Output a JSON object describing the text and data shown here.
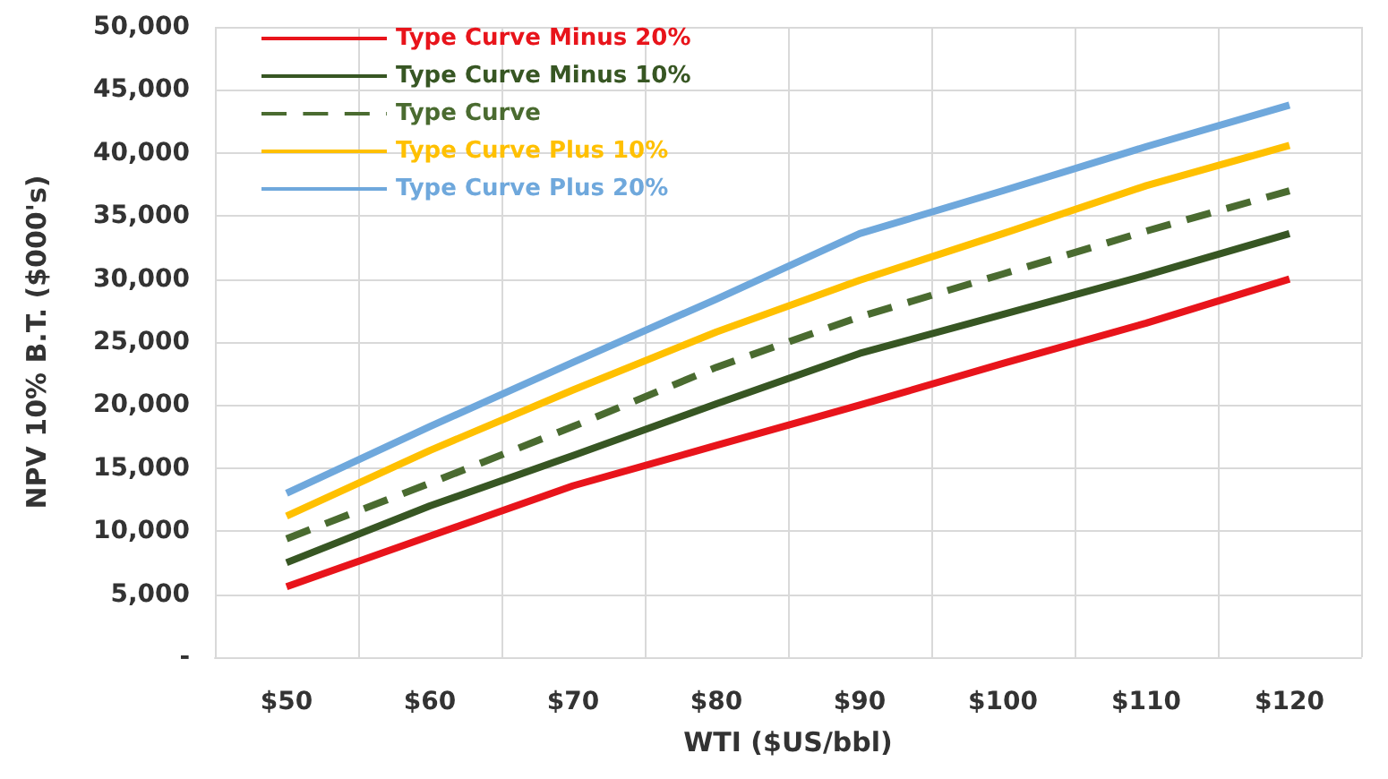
{
  "chart_data": {
    "type": "line",
    "xlabel": "WTI ($US/bbl)",
    "ylabel": "NPV 10% B.T. ($000's)",
    "categories": [
      "$50",
      "$60",
      "$70",
      "$80",
      "$90",
      "$100",
      "$110",
      "$120"
    ],
    "ylim": [
      0,
      50000
    ],
    "yticks": [
      {
        "value": 0,
        "label": "-"
      },
      {
        "value": 5000,
        "label": "5,000"
      },
      {
        "value": 10000,
        "label": "10,000"
      },
      {
        "value": 15000,
        "label": "15,000"
      },
      {
        "value": 20000,
        "label": "20,000"
      },
      {
        "value": 25000,
        "label": "25,000"
      },
      {
        "value": 30000,
        "label": "30,000"
      },
      {
        "value": 35000,
        "label": "35,000"
      },
      {
        "value": 40000,
        "label": "40,000"
      },
      {
        "value": 45000,
        "label": "45,000"
      },
      {
        "value": 50000,
        "label": "50,000"
      }
    ],
    "grid": true,
    "legend": "top left",
    "marker": "none",
    "series": [
      {
        "name": "Type Curve Minus 20%",
        "color": "#e8141b",
        "line_style": "solid",
        "values": [
          5600,
          9600,
          13600,
          16800,
          20000,
          23300,
          26500,
          30000
        ]
      },
      {
        "name": "Type Curve Minus 10%",
        "color": "#375623",
        "line_style": "solid",
        "values": [
          7500,
          12000,
          16000,
          20100,
          24100,
          27200,
          30300,
          33600
        ]
      },
      {
        "name": "Type Curve",
        "color": "#4a6b30",
        "line_style": "dashed",
        "values": [
          9400,
          13800,
          18300,
          23000,
          27000,
          30400,
          33800,
          37000
        ]
      },
      {
        "name": "Type Curve Plus 10%",
        "color": "#ffc000",
        "line_style": "solid",
        "values": [
          11200,
          16400,
          21200,
          25800,
          29900,
          33600,
          37400,
          40600
        ]
      },
      {
        "name": "Type Curve Plus 20%",
        "color": "#6fa8dc",
        "line_style": "solid",
        "values": [
          13000,
          18300,
          23400,
          28400,
          33600,
          37000,
          40500,
          43800
        ]
      }
    ]
  }
}
